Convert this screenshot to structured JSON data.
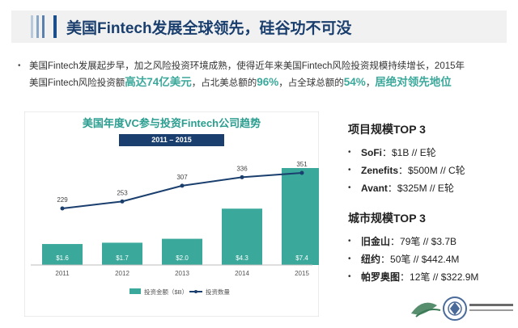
{
  "slide_title": "美国Fintech发展全球领先，硅谷功不可没",
  "intro": {
    "line1": "美国Fintech发展起步早，加之风险投资环境成熟，使得近年来美国Fintech风险投资规模持续增长，2015年",
    "line2_a": "美国Fintech风险投资额",
    "line2_hl1": "高达74亿美元",
    "line2_b": "，占北美总额的",
    "line2_hl2": "96%",
    "line2_c": "，占全球总额的",
    "line2_hl3": "54%",
    "line2_d": "，",
    "line2_hl4": "居绝对领先地位"
  },
  "chart_data": {
    "type": "bar",
    "title": "美国年度VC参与投资Fintech公司趋势",
    "subtitle": "2011 – 2015",
    "categories": [
      "2011",
      "2012",
      "2013",
      "2014",
      "2015"
    ],
    "series": [
      {
        "name": "投资金额（$B）",
        "type": "bar",
        "values": [
          1.6,
          1.7,
          2.0,
          4.3,
          7.4
        ],
        "labels": [
          "$1.6",
          "$1.7",
          "$2.0",
          "$4.3",
          "$7.4"
        ],
        "color": "#3aa89a"
      },
      {
        "name": "投资数量",
        "type": "line",
        "values": [
          229,
          253,
          307,
          336,
          351
        ],
        "color": "#1a3f6e"
      }
    ],
    "legend": "bottom",
    "grid": false
  },
  "top_projects": {
    "heading": "项目规模TOP 3",
    "items": [
      {
        "name": "SoFi",
        "detail": "：$1B // E轮"
      },
      {
        "name": "Zenefits",
        "detail": "：$500M // C轮"
      },
      {
        "name": "Avant",
        "detail": "：$325M // E轮"
      }
    ]
  },
  "top_cities": {
    "heading": "城市规模TOP 3",
    "items": [
      {
        "name": "旧金山",
        "detail": "：79笔 // $3.7B"
      },
      {
        "name": "纽约",
        "detail": "：50笔 // $442.4M"
      },
      {
        "name": "帕罗奥图",
        "detail": "：12笔 // $322.9M"
      }
    ]
  },
  "colors": {
    "title_text": "#1a3f6e",
    "accent_teal": "#3aa89a",
    "line_navy": "#1a3f6e"
  },
  "icons": {
    "bullet": "•",
    "logo_left": "university-seal-icon",
    "logo_right": "institute-emblem-icon"
  }
}
